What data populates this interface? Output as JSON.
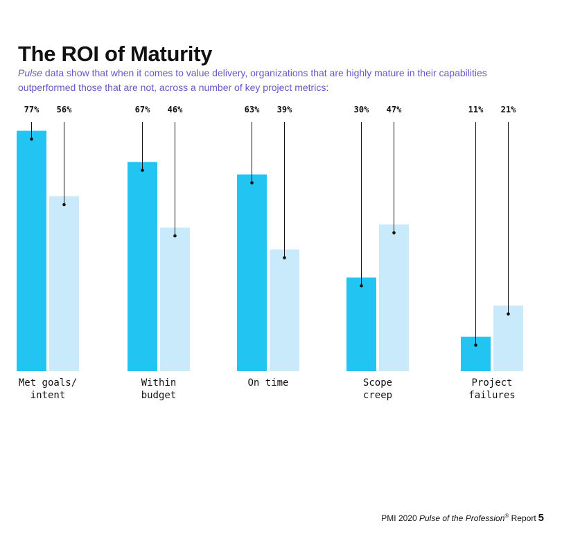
{
  "header": {
    "title": "The ROI of Maturity",
    "subtitle_italic": "Pulse",
    "subtitle_rest": " data show that when it comes to value delivery, organizations that are highly mature in their capabilities outperformed those that are not, across a number of key project metrics:"
  },
  "colors": {
    "high_maturity": "#22c4f2",
    "low_maturity": "#c8eafa",
    "subtitle": "#6a55c8"
  },
  "chart_data": {
    "type": "bar",
    "categories": [
      [
        "Met goals/",
        "intent"
      ],
      [
        "Within",
        "budget"
      ],
      [
        "On time"
      ],
      [
        "Scope",
        "creep"
      ],
      [
        "Project",
        "failures"
      ]
    ],
    "series": [
      {
        "values": [
          77,
          67,
          63,
          30,
          11
        ],
        "labels": [
          "77%",
          "67%",
          "63%",
          "30%",
          "11%"
        ]
      },
      {
        "values": [
          56,
          46,
          39,
          47,
          21
        ],
        "labels": [
          "56%",
          "46%",
          "39%",
          "47%",
          "21%"
        ]
      }
    ],
    "ylim": [
      0,
      100
    ],
    "unit": "%"
  },
  "footer": {
    "prefix": "PMI 2020 ",
    "italic": "Pulse of the Profession",
    "reg": "®",
    "suffix": " Report",
    "page": "5"
  }
}
